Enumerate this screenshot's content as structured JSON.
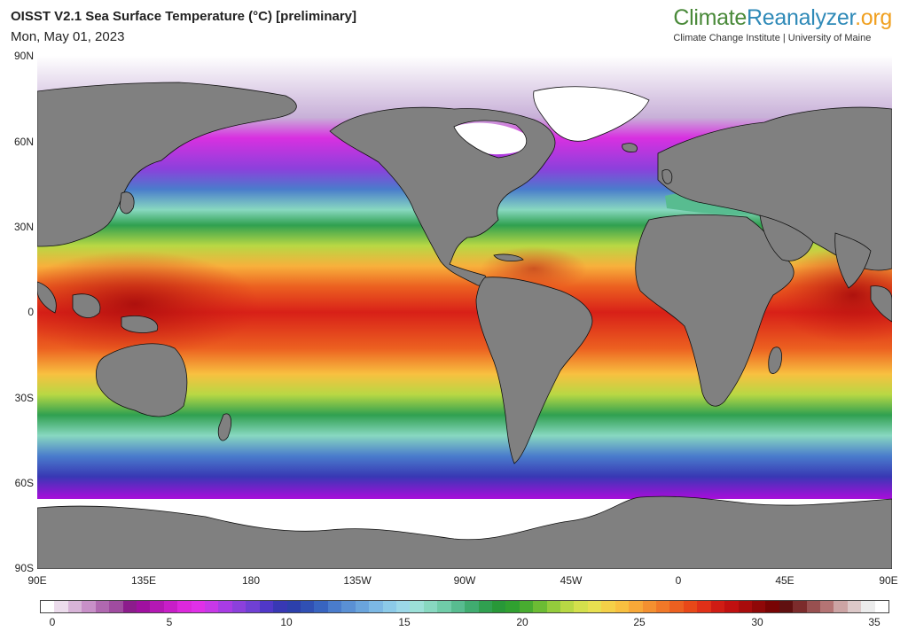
{
  "header": {
    "title": "OISST V2.1 Sea Surface Temperature (°C) [preliminary]",
    "date": "Mon, May 01, 2023"
  },
  "brand": {
    "name_part1": "Climate",
    "name_part2": "Reanalyzer",
    "name_part3": ".org",
    "subtitle": "Climate Change Institute | University of Maine"
  },
  "map": {
    "lat_labels": [
      "90N",
      "60N",
      "30N",
      "0",
      "30S",
      "60S",
      "90S"
    ],
    "lon_labels": [
      "90E",
      "135E",
      "180",
      "135W",
      "90W",
      "45W",
      "0",
      "45E",
      "90E"
    ],
    "land_color": "#808080",
    "ice_color": "#ffffff",
    "border_color": "#111111"
  },
  "colorbar": {
    "ticks": [
      "0",
      "5",
      "10",
      "15",
      "20",
      "25",
      "30",
      "35"
    ],
    "min": 0,
    "max": 35,
    "colors": [
      "#ffffff",
      "#ecdcec",
      "#d8b4d8",
      "#c890c8",
      "#b068b0",
      "#a04ca0",
      "#8c1c8c",
      "#a010a0",
      "#b418b4",
      "#c81ec8",
      "#dc28dc",
      "#e030e8",
      "#c838e8",
      "#a83ce4",
      "#8c40dc",
      "#7040d4",
      "#5038c8",
      "#3838b4",
      "#2c40ac",
      "#3050b4",
      "#3864c0",
      "#4a7ccc",
      "#5a90d4",
      "#6aa4dc",
      "#7cb8e4",
      "#8ccae8",
      "#9cd8e8",
      "#9ce0d8",
      "#88d8c0",
      "#70cca8",
      "#58bc90",
      "#40ac70",
      "#30a050",
      "#289838",
      "#30a030",
      "#48ac30",
      "#6cbc34",
      "#94cc3c",
      "#b8d844",
      "#d4e04c",
      "#e8e050",
      "#f4d048",
      "#f8c040",
      "#f8a838",
      "#f49030",
      "#f07828",
      "#ec6020",
      "#e84818",
      "#e03018",
      "#d01c14",
      "#c01010",
      "#a80c0c",
      "#900808",
      "#780404",
      "#601010",
      "#7c2c2c",
      "#985050",
      "#b47474",
      "#cca4a4",
      "#dcc8c8",
      "#ececec",
      "#ffffff"
    ]
  }
}
